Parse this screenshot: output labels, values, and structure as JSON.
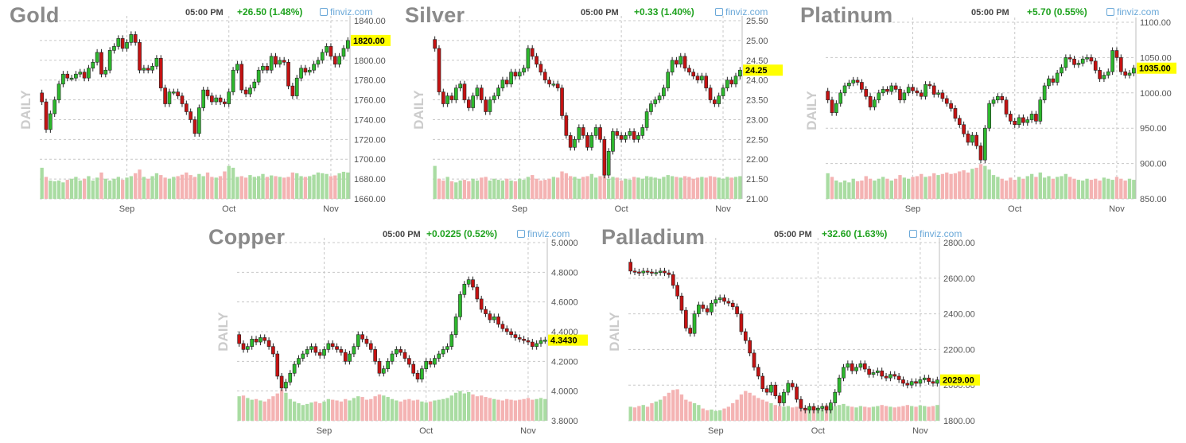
{
  "page": {
    "source": "finviz.com",
    "timeframe": "DAILY",
    "time": "05:00 PM"
  },
  "colors": {
    "up": "#2db82d",
    "down": "#c41212",
    "vol_up": "#a9dca2",
    "vol_down": "#f4b3b3",
    "grid": "#c8c8c8",
    "price_tag": "#ffff00",
    "change": "#1fa21f",
    "brand": "#6aa8d8"
  },
  "icons": {
    "brand": "finviz-logo-icon"
  },
  "chart_data": [
    {
      "type": "candlestick",
      "title": "Gold",
      "timeframe_label": "DAILY",
      "time": "05:00 PM",
      "change_text": "+26.50 (1.48%)",
      "source": "finviz.com",
      "last_price": "1820.00",
      "last_price_value": 1820,
      "ylim": [
        1660,
        1840
      ],
      "y_ticks": [
        1660,
        1680,
        1700,
        1720,
        1740,
        1760,
        1780,
        1800,
        1820,
        1840
      ],
      "y_tick_labels": [
        "1660.00",
        "1680.00",
        "1700.00",
        "1720.00",
        "1740.00",
        "1760.00",
        "1780.00",
        "1800.00",
        "1820.00",
        "1840.00"
      ],
      "x_ticks": [
        "Sep",
        "Oct",
        "Nov"
      ],
      "x_tick_index": [
        20,
        44,
        68
      ],
      "grid": true,
      "candles": 73,
      "closes": [
        1758,
        1730,
        1746,
        1760,
        1776,
        1786,
        1782,
        1782,
        1786,
        1788,
        1782,
        1792,
        1798,
        1808,
        1786,
        1790,
        1810,
        1814,
        1822,
        1812,
        1818,
        1826,
        1818,
        1790,
        1792,
        1790,
        1794,
        1802,
        1772,
        1756,
        1768,
        1768,
        1764,
        1756,
        1748,
        1740,
        1726,
        1752,
        1770,
        1764,
        1758,
        1762,
        1758,
        1756,
        1768,
        1790,
        1796,
        1770,
        1766,
        1772,
        1778,
        1790,
        1794,
        1790,
        1804,
        1796,
        1800,
        1798,
        1774,
        1764,
        1782,
        1792,
        1788,
        1790,
        1796,
        1800,
        1808,
        1814,
        1804,
        1796,
        1804,
        1812,
        1820
      ],
      "volumes": [
        0.85,
        0.6,
        0.5,
        0.48,
        0.5,
        0.45,
        0.52,
        0.55,
        0.6,
        0.5,
        0.55,
        0.62,
        0.5,
        0.58,
        0.72,
        0.55,
        0.5,
        0.55,
        0.6,
        0.52,
        0.58,
        0.62,
        0.7,
        0.8,
        0.6,
        0.55,
        0.62,
        0.7,
        0.65,
        0.58,
        0.55,
        0.6,
        0.62,
        0.66,
        0.72,
        0.65,
        0.6,
        0.68,
        0.62,
        0.72,
        0.6,
        0.58,
        0.62,
        0.75,
        0.9,
        0.85,
        0.6,
        0.62,
        0.58,
        0.65,
        0.6,
        0.62,
        0.68,
        0.6,
        0.64,
        0.62,
        0.6,
        0.58,
        0.6,
        0.72,
        0.7,
        0.62,
        0.6,
        0.62,
        0.66,
        0.72,
        0.7,
        0.68,
        0.62,
        0.64,
        0.7,
        0.74,
        0.72
      ]
    },
    {
      "type": "candlestick",
      "title": "Silver",
      "timeframe_label": "DAILY",
      "time": "05:00 PM",
      "change_text": "+0.33 (1.40%)",
      "source": "finviz.com",
      "last_price": "24.25",
      "last_price_value": 24.25,
      "ylim": [
        21,
        25.5
      ],
      "y_ticks": [
        21,
        21.5,
        22,
        22.5,
        23,
        23.5,
        24,
        24.5,
        25,
        25.5
      ],
      "y_tick_labels": [
        "21.00",
        "21.50",
        "22.00",
        "22.50",
        "23.00",
        "23.50",
        "24.00",
        "24.50",
        "25.00",
        "25.50"
      ],
      "x_ticks": [
        "Sep",
        "Oct",
        "Nov"
      ],
      "x_tick_index": [
        20,
        44,
        68
      ],
      "grid": true,
      "candles": 73,
      "closes": [
        24.8,
        23.7,
        23.4,
        23.6,
        23.5,
        23.8,
        23.9,
        23.5,
        23.3,
        23.6,
        23.8,
        23.5,
        23.2,
        23.5,
        23.6,
        23.8,
        24.0,
        23.9,
        24.2,
        24.1,
        24.2,
        24.3,
        24.8,
        24.6,
        24.4,
        24.2,
        24.0,
        23.9,
        23.9,
        23.8,
        23.1,
        22.6,
        22.3,
        22.5,
        22.8,
        22.6,
        22.3,
        22.6,
        22.8,
        22.5,
        21.6,
        22.2,
        22.7,
        22.6,
        22.5,
        22.6,
        22.7,
        22.5,
        22.6,
        22.8,
        23.2,
        23.4,
        23.5,
        23.6,
        23.8,
        24.2,
        24.5,
        24.4,
        24.6,
        24.3,
        24.2,
        24.1,
        24.0,
        24.1,
        23.8,
        23.5,
        23.4,
        23.6,
        23.8,
        24.0,
        23.9,
        24.1,
        24.25
      ],
      "volumes": [
        0.9,
        0.55,
        0.5,
        0.6,
        0.48,
        0.45,
        0.5,
        0.52,
        0.48,
        0.55,
        0.5,
        0.58,
        0.6,
        0.5,
        0.55,
        0.52,
        0.5,
        0.55,
        0.5,
        0.48,
        0.55,
        0.52,
        0.6,
        0.65,
        0.55,
        0.5,
        0.52,
        0.55,
        0.6,
        0.58,
        0.75,
        0.7,
        0.62,
        0.6,
        0.55,
        0.6,
        0.62,
        0.68,
        0.58,
        0.62,
        0.7,
        0.55,
        0.6,
        0.58,
        0.5,
        0.55,
        0.52,
        0.6,
        0.58,
        0.55,
        0.62,
        0.6,
        0.58,
        0.55,
        0.6,
        0.65,
        0.62,
        0.6,
        0.58,
        0.62,
        0.6,
        0.55,
        0.58,
        0.6,
        0.58,
        0.62,
        0.6,
        0.58,
        0.55,
        0.6,
        0.58,
        0.6,
        0.62
      ]
    },
    {
      "type": "candlestick",
      "title": "Platinum",
      "timeframe_label": "DAILY",
      "time": "05:00 PM",
      "change_text": "+5.70 (0.55%)",
      "source": "finviz.com",
      "last_price": "1035.00",
      "last_price_value": 1035,
      "ylim": [
        850,
        1100
      ],
      "y_ticks": [
        850,
        900,
        950,
        1000,
        1050,
        1100
      ],
      "y_tick_labels": [
        "850.00",
        "900.00",
        "950.00",
        "1000.00",
        "1050.00",
        "1100.00"
      ],
      "x_ticks": [
        "Sep",
        "Oct",
        "Nov"
      ],
      "x_tick_index": [
        20,
        44,
        68
      ],
      "grid": true,
      "candles": 73,
      "closes": [
        990,
        972,
        985,
        1000,
        1010,
        1014,
        1018,
        1015,
        1005,
        995,
        980,
        990,
        1000,
        1005,
        1002,
        1010,
        1005,
        990,
        1000,
        1008,
        1003,
        1000,
        995,
        1012,
        1010,
        998,
        1000,
        992,
        985,
        978,
        964,
        955,
        942,
        930,
        940,
        925,
        905,
        950,
        985,
        990,
        995,
        990,
        970,
        960,
        955,
        965,
        958,
        962,
        970,
        960,
        990,
        1010,
        1020,
        1015,
        1028,
        1036,
        1050,
        1048,
        1040,
        1042,
        1048,
        1050,
        1045,
        1032,
        1020,
        1025,
        1030,
        1060,
        1050,
        1030,
        1025,
        1028,
        1035
      ],
      "volumes": [
        0.7,
        0.6,
        0.5,
        0.45,
        0.5,
        0.45,
        0.55,
        0.48,
        0.5,
        0.62,
        0.55,
        0.5,
        0.55,
        0.6,
        0.55,
        0.5,
        0.55,
        0.65,
        0.58,
        0.55,
        0.6,
        0.62,
        0.68,
        0.6,
        0.62,
        0.7,
        0.65,
        0.68,
        0.72,
        0.68,
        0.7,
        0.75,
        0.78,
        0.72,
        0.82,
        0.85,
        0.95,
        0.9,
        0.8,
        0.65,
        0.6,
        0.55,
        0.5,
        0.58,
        0.52,
        0.6,
        0.55,
        0.62,
        0.68,
        0.6,
        0.72,
        0.58,
        0.62,
        0.55,
        0.6,
        0.62,
        0.68,
        0.6,
        0.55,
        0.52,
        0.5,
        0.55,
        0.52,
        0.55,
        0.5,
        0.58,
        0.55,
        0.52,
        0.6,
        0.55,
        0.5,
        0.55,
        0.52
      ]
    },
    {
      "type": "candlestick",
      "title": "Copper",
      "timeframe_label": "DAILY",
      "time": "05:00 PM",
      "change_text": "+0.0225 (0.52%)",
      "source": "finviz.com",
      "last_price": "4.3430",
      "last_price_value": 4.343,
      "ylim": [
        3.8,
        5.0
      ],
      "y_ticks": [
        3.8,
        4.0,
        4.2,
        4.4,
        4.6,
        4.8,
        5.0
      ],
      "y_tick_labels": [
        "3.8000",
        "4.0000",
        "4.2000",
        "4.4000",
        "4.6000",
        "4.8000",
        "5.0000"
      ],
      "x_ticks": [
        "Sep",
        "Oct",
        "Nov"
      ],
      "x_tick_index": [
        20,
        44,
        68
      ],
      "grid": true,
      "candles": 73,
      "closes": [
        4.32,
        4.28,
        4.3,
        4.35,
        4.33,
        4.36,
        4.34,
        4.3,
        4.25,
        4.1,
        4.02,
        4.06,
        4.12,
        4.18,
        4.22,
        4.25,
        4.28,
        4.3,
        4.26,
        4.24,
        4.28,
        4.32,
        4.3,
        4.28,
        4.26,
        4.2,
        4.25,
        4.3,
        4.38,
        4.35,
        4.32,
        4.28,
        4.2,
        4.12,
        4.15,
        4.2,
        4.25,
        4.28,
        4.26,
        4.22,
        4.18,
        4.12,
        4.08,
        4.15,
        4.2,
        4.18,
        4.22,
        4.25,
        4.28,
        4.3,
        4.38,
        4.5,
        4.65,
        4.72,
        4.75,
        4.7,
        4.62,
        4.55,
        4.52,
        4.48,
        4.5,
        4.45,
        4.42,
        4.4,
        4.38,
        4.36,
        4.35,
        4.34,
        4.33,
        4.3,
        4.32,
        4.34,
        4.343
      ],
      "volumes": [
        0.7,
        0.72,
        0.65,
        0.6,
        0.62,
        0.58,
        0.55,
        0.62,
        0.7,
        0.78,
        0.9,
        0.8,
        0.62,
        0.55,
        0.5,
        0.45,
        0.48,
        0.52,
        0.55,
        0.5,
        0.55,
        0.62,
        0.6,
        0.58,
        0.55,
        0.62,
        0.58,
        0.65,
        0.7,
        0.68,
        0.6,
        0.62,
        0.7,
        0.75,
        0.72,
        0.68,
        0.62,
        0.58,
        0.55,
        0.6,
        0.62,
        0.58,
        0.6,
        0.55,
        0.52,
        0.55,
        0.58,
        0.6,
        0.62,
        0.65,
        0.72,
        0.8,
        0.85,
        0.78,
        0.82,
        0.75,
        0.7,
        0.72,
        0.68,
        0.65,
        0.62,
        0.6,
        0.58,
        0.62,
        0.6,
        0.58,
        0.6,
        0.62,
        0.65,
        0.6,
        0.62,
        0.65,
        0.62
      ]
    },
    {
      "type": "candlestick",
      "title": "Palladium",
      "timeframe_label": "DAILY",
      "time": "05:00 PM",
      "change_text": "+32.60 (1.63%)",
      "source": "finviz.com",
      "last_price": "2029.00",
      "last_price_value": 2029,
      "ylim": [
        1800,
        2800
      ],
      "y_ticks": [
        1800,
        2000,
        2200,
        2400,
        2600,
        2800
      ],
      "y_tick_labels": [
        "1800.00",
        "2000.00",
        "2200.00",
        "2400.00",
        "2600.00",
        "2800.00"
      ],
      "x_ticks": [
        "Sep",
        "Oct",
        "Nov"
      ],
      "x_tick_index": [
        20,
        44,
        68
      ],
      "grid": true,
      "candles": 73,
      "closes": [
        2640,
        2635,
        2630,
        2640,
        2635,
        2630,
        2632,
        2640,
        2630,
        2620,
        2560,
        2500,
        2420,
        2320,
        2290,
        2400,
        2450,
        2430,
        2410,
        2460,
        2480,
        2490,
        2470,
        2460,
        2440,
        2400,
        2300,
        2250,
        2180,
        2100,
        2050,
        1980,
        1960,
        2000,
        1940,
        1900,
        1960,
        2010,
        1990,
        1920,
        1870,
        1860,
        1880,
        1860,
        1870,
        1880,
        1860,
        1900,
        1960,
        2040,
        2100,
        2120,
        2080,
        2100,
        2120,
        2090,
        2060,
        2070,
        2080,
        2050,
        2040,
        2060,
        2050,
        2030,
        2010,
        2000,
        2020,
        2010,
        2030,
        2040,
        2020,
        2010,
        2029
      ],
      "volumes": [
        0.4,
        0.38,
        0.42,
        0.45,
        0.4,
        0.5,
        0.55,
        0.6,
        0.7,
        0.8,
        0.88,
        0.9,
        0.75,
        0.6,
        0.55,
        0.5,
        0.45,
        0.35,
        0.3,
        0.32,
        0.28,
        0.3,
        0.35,
        0.4,
        0.5,
        0.6,
        0.75,
        0.85,
        0.8,
        0.72,
        0.65,
        0.6,
        0.55,
        0.5,
        0.45,
        0.42,
        0.4,
        0.42,
        0.38,
        0.4,
        0.36,
        0.38,
        0.42,
        0.4,
        0.38,
        0.42,
        0.45,
        0.4,
        0.42,
        0.45,
        0.48,
        0.42,
        0.4,
        0.38,
        0.42,
        0.4,
        0.38,
        0.4,
        0.42,
        0.45,
        0.42,
        0.4,
        0.38,
        0.4,
        0.42,
        0.45,
        0.42,
        0.4,
        0.44,
        0.42,
        0.4,
        0.42,
        0.45
      ]
    }
  ]
}
